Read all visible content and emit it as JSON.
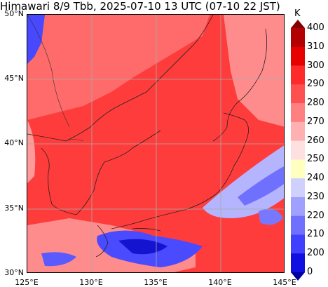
{
  "title": "Himawari 8/9 Tbb, 2025-07-10 13 UTC (07-10 22 JST)",
  "map": {
    "lat_labels": [
      "50°N",
      "45°N",
      "40°N",
      "35°N",
      "30°N"
    ],
    "lon_labels": [
      "125°E",
      "130°E",
      "135°E",
      "140°E",
      "145°E"
    ],
    "extent": {
      "lon": [
        125,
        145
      ],
      "lat": [
        30,
        50
      ]
    }
  },
  "colorbar": {
    "unit": "K",
    "ticks": [
      "400",
      "310",
      "300",
      "290",
      "280",
      "270",
      "260",
      "250",
      "240",
      "230",
      "220",
      "210",
      "200",
      "0"
    ],
    "colors": [
      "#800000",
      "#b30000",
      "#e60000",
      "#ff2b2b",
      "#ff5050",
      "#ff8080",
      "#ffb0b0",
      "#ffe0e0",
      "#ffffc0",
      "#d0d0ff",
      "#a0a0ff",
      "#7070ff",
      "#4040ff",
      "#1010e0",
      "#0000a0"
    ]
  }
}
